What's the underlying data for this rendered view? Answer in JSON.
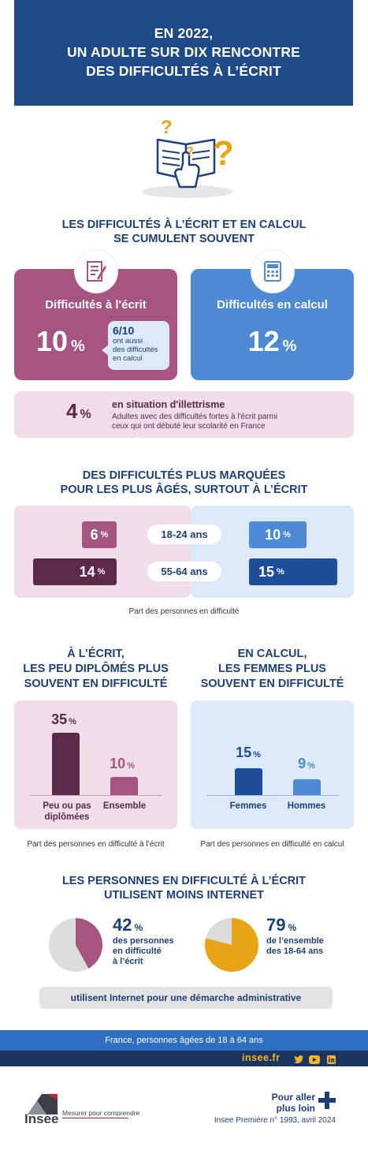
{
  "header": {
    "line1": "EN 2022,",
    "line2": "UN ADULTE SUR DIX RENCONTRE",
    "line3": "DES DIFFICULTÉS À L’ÉCRIT"
  },
  "section1": {
    "title_line1": "LES DIFFICULTÉS À L’ÉCRIT ET EN CALCUL",
    "title_line2": "SE CUMULENT SOUVENT",
    "writing_card": {
      "label": "Difficultés à l'écrit",
      "value": "10",
      "unit": "%",
      "bubble_value": "6/10",
      "bubble_line1": "ont aussi",
      "bubble_line2": "des difficultés",
      "bubble_line3": "en calcul"
    },
    "calc_card": {
      "label": "Difficultés en calcul",
      "value": "12",
      "unit": "%"
    },
    "illiteracy": {
      "value": "4",
      "unit": "%",
      "title": "en situation d'illettrisme",
      "line1": "Adultes avec des difficultés fortes à l'écrit parmi",
      "line2": "ceux qui ont débuté leur scolarité en France"
    },
    "colors": {
      "writing": "#a5557f",
      "calc": "#4e89d3"
    }
  },
  "section2": {
    "title_line1": "DES DIFFICULTÉS PLUS MARQUÉES",
    "title_line2": "POUR LES PLUS ÂGÉS, SURTOUT À L’ÉCRIT",
    "rows": [
      {
        "age": "18-24 ans",
        "writing": "6",
        "calc": "10",
        "unit": "%"
      },
      {
        "age": "55-64 ans",
        "writing": "14",
        "calc": "15",
        "unit": "%"
      }
    ],
    "note": "Part des personnes en difficulté"
  },
  "section3": {
    "left": {
      "title_line1": "À L’ÉCRIT,",
      "title_line2": "LES PEU DIPLÔMÉS PLUS",
      "title_line3": "SOUVENT EN DIFFICULTÉ",
      "bars": [
        {
          "value": "35",
          "unit": "%",
          "label_line1": "Peu ou pas",
          "label_line2": "diplômées"
        },
        {
          "value": "10",
          "unit": "%",
          "label_line1": "Ensemble",
          "label_line2": ""
        }
      ],
      "note": "Part des personnes en difficulté à l’écrit"
    },
    "right": {
      "title_line1": "EN CALCUL,",
      "title_line2": "LES FEMMES PLUS",
      "title_line3": "SOUVENT EN DIFFICULTÉ",
      "bars": [
        {
          "value": "15",
          "unit": "%",
          "label_line1": "Femmes"
        },
        {
          "value": "9",
          "unit": "%",
          "label_line1": "Hommes"
        }
      ],
      "note": "Part des personnes en difficulté en calcul"
    }
  },
  "section4": {
    "title_line1": "LES PERSONNES EN DIFFICULTÉ À L’ÉCRIT",
    "title_line2": "UTILISENT MOINS INTERNET",
    "left": {
      "value": "42",
      "unit": "%",
      "line1": "des personnes",
      "line2": "en difficulté",
      "line3": "à l’écrit",
      "fraction": 0.42
    },
    "right": {
      "value": "79",
      "unit": "%",
      "line1": "de l’ensemble",
      "line2": "des 18-64 ans",
      "fraction": 0.79
    },
    "banner": "utilisent Internet pour une démarche administrative"
  },
  "footer": {
    "scope": "France, personnes âgées de 18 à 64 ans",
    "site": "insee.fr",
    "brand": "Insee",
    "tagline": "Mesurer pour comprendre",
    "more_line1": "Pour aller",
    "more_line2": "plus loin",
    "publication": "Insee Première n° 1993, avril 2024",
    "social_icons": [
      "twitter-icon",
      "youtube-icon",
      "linkedin-icon"
    ]
  }
}
